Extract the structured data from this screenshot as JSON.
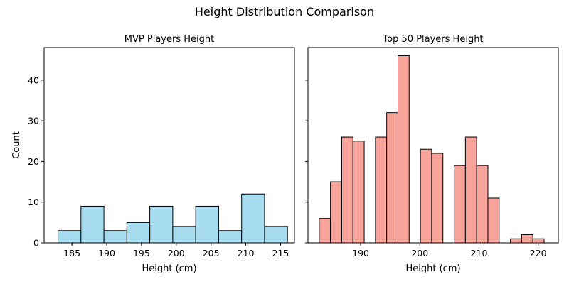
{
  "title": "Height Distribution Comparison",
  "chart_data": [
    {
      "type": "bar",
      "subtitle": "MVP Players Height",
      "xlabel": "Height (cm)",
      "ylabel": "Count",
      "xlim": [
        181,
        217
      ],
      "ylim": [
        0,
        48
      ],
      "xticks": [
        185,
        190,
        195,
        200,
        205,
        210,
        215
      ],
      "yticks": [
        0,
        10,
        20,
        30,
        40
      ],
      "show_yticklabels": true,
      "color": "#a6dbf0",
      "edgecolor": "#000000",
      "bins": [
        {
          "x0": 183.0,
          "x1": 186.3,
          "value": 3
        },
        {
          "x0": 186.3,
          "x1": 189.6,
          "value": 9
        },
        {
          "x0": 189.6,
          "x1": 192.9,
          "value": 3
        },
        {
          "x0": 192.9,
          "x1": 196.2,
          "value": 5
        },
        {
          "x0": 196.2,
          "x1": 199.5,
          "value": 9
        },
        {
          "x0": 199.5,
          "x1": 202.8,
          "value": 4
        },
        {
          "x0": 202.8,
          "x1": 206.1,
          "value": 9
        },
        {
          "x0": 206.1,
          "x1": 209.4,
          "value": 3
        },
        {
          "x0": 209.4,
          "x1": 212.7,
          "value": 12
        },
        {
          "x0": 212.7,
          "x1": 216.0,
          "value": 4
        }
      ]
    },
    {
      "type": "bar",
      "subtitle": "Top 50 Players Height",
      "xlabel": "Height (cm)",
      "ylabel": "",
      "xlim": [
        181.1,
        223.4
      ],
      "ylim": [
        0,
        48
      ],
      "xticks": [
        190,
        200,
        210,
        220
      ],
      "yticks": [
        0,
        10,
        20,
        30,
        40
      ],
      "show_yticklabels": false,
      "color": "#f7a39a",
      "edgecolor": "#000000",
      "bins": [
        {
          "x0": 183.0,
          "x1": 184.9,
          "value": 6
        },
        {
          "x0": 184.9,
          "x1": 186.8,
          "value": 15
        },
        {
          "x0": 186.8,
          "x1": 188.7,
          "value": 26
        },
        {
          "x0": 188.7,
          "x1": 190.6,
          "value": 25
        },
        {
          "x0": 190.6,
          "x1": 192.5,
          "value": 0
        },
        {
          "x0": 192.5,
          "x1": 194.4,
          "value": 26
        },
        {
          "x0": 194.4,
          "x1": 196.3,
          "value": 32
        },
        {
          "x0": 196.3,
          "x1": 198.2,
          "value": 46
        },
        {
          "x0": 198.2,
          "x1": 200.1,
          "value": 0
        },
        {
          "x0": 200.1,
          "x1": 202.0,
          "value": 23
        },
        {
          "x0": 202.0,
          "x1": 203.9,
          "value": 22
        },
        {
          "x0": 203.9,
          "x1": 205.8,
          "value": 0
        },
        {
          "x0": 205.8,
          "x1": 207.7,
          "value": 19
        },
        {
          "x0": 207.7,
          "x1": 209.6,
          "value": 26
        },
        {
          "x0": 209.6,
          "x1": 211.5,
          "value": 19
        },
        {
          "x0": 211.5,
          "x1": 213.4,
          "value": 11
        },
        {
          "x0": 213.4,
          "x1": 215.3,
          "value": 0
        },
        {
          "x0": 215.3,
          "x1": 217.2,
          "value": 1
        },
        {
          "x0": 217.2,
          "x1": 219.1,
          "value": 2
        },
        {
          "x0": 219.1,
          "x1": 221.0,
          "value": 1
        }
      ]
    }
  ]
}
